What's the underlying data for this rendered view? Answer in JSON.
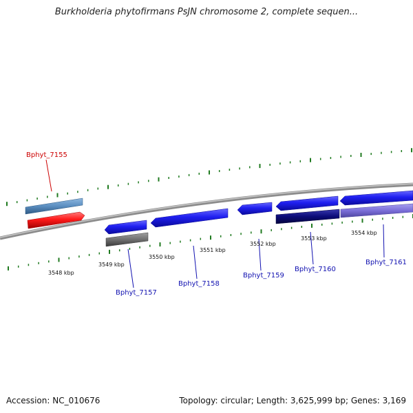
{
  "title": "Burkholderia phytofirmans PsJN chromosome 2, complete sequen...",
  "footer": {
    "accession": "Accession: NC_010676",
    "summary": "Topology: circular; Length: 3,625,999 bp; Genes: 3,169"
  },
  "colors": {
    "backbone": "#8c8c8c",
    "ticks": "#1f7a1f",
    "forward_gene": "#1f1ff0",
    "dark_gene": "#0b0b78",
    "light_gene": "#7b6fd8",
    "steel_gene": "#5b8ec0",
    "red_gene": "#ff1a1a",
    "gray_gene": "#707070",
    "blue_label": "#1010b0",
    "red_label": "#cc0000"
  },
  "scale": {
    "tick_labels": [
      "3548 kbp",
      "3549 kbp",
      "3550 kbp",
      "3551 kbp",
      "3552 kbp",
      "3553 kbp",
      "3554 kbp"
    ]
  },
  "genes": [
    {
      "name": "Bphyt_7155",
      "color": "red_gene"
    },
    {
      "name": "Bphyt_7157",
      "color": "forward_gene"
    },
    {
      "name": "Bphyt_7158",
      "color": "forward_gene"
    },
    {
      "name": "Bphyt_7159",
      "color": "forward_gene"
    },
    {
      "name": "Bphyt_7160",
      "color": "forward_gene"
    },
    {
      "name": "Bphyt_7161",
      "color": "forward_gene"
    }
  ]
}
